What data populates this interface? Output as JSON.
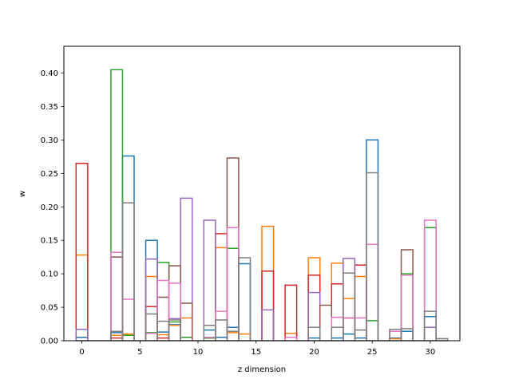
{
  "chart_data": {
    "type": "bar",
    "style": "step-outline histogram (overlapping unfilled bars)",
    "xlabel": "z dimension",
    "ylabel": "w",
    "xlim": [
      -1.55,
      32.55
    ],
    "ylim": [
      0,
      0.44
    ],
    "xticks": [
      0,
      5,
      10,
      15,
      20,
      25,
      30
    ],
    "yticks": [
      0.0,
      0.05,
      0.1,
      0.15,
      0.2,
      0.25,
      0.3,
      0.35,
      0.4
    ],
    "series": [
      {
        "color": "#1f77b4",
        "values": [
          0.005,
          0,
          0,
          0.012,
          0.276,
          0,
          0.15,
          0.013,
          0.024,
          0,
          0,
          0.016,
          0.005,
          0.02,
          0.115,
          0,
          0,
          0,
          0,
          0,
          0.004,
          0,
          0.004,
          0.01,
          0.004,
          0.3,
          0,
          0.004,
          0.014,
          0,
          0.036,
          0
        ]
      },
      {
        "color": "#ff7f0e",
        "values": [
          0.128,
          0,
          0,
          0.008,
          0.01,
          0,
          0.096,
          0.009,
          0.023,
          0.034,
          0,
          0.004,
          0.139,
          0.012,
          0.01,
          0,
          0.171,
          0,
          0.011,
          0,
          0.124,
          0,
          0.116,
          0.063,
          0.096,
          0,
          0,
          0.003,
          0,
          0,
          0,
          0
        ]
      },
      {
        "color": "#2ca02c",
        "values": [
          0,
          0,
          0,
          0.405,
          0.008,
          0,
          0.012,
          0.117,
          0.028,
          0.005,
          0,
          0.004,
          0,
          0.138,
          0,
          0,
          0,
          0,
          0,
          0,
          0,
          0,
          0,
          0,
          0,
          0.03,
          0,
          0,
          0.1,
          0,
          0.169,
          0
        ]
      },
      {
        "color": "#d62728",
        "values": [
          0.265,
          0,
          0,
          0.004,
          0,
          0,
          0.051,
          0.004,
          0,
          0,
          0,
          0,
          0.16,
          0,
          0,
          0,
          0.104,
          0,
          0.083,
          0,
          0.098,
          0,
          0.085,
          0.034,
          0.113,
          0,
          0,
          0,
          0,
          0,
          0,
          0
        ]
      },
      {
        "color": "#9467bd",
        "values": [
          0.017,
          0,
          0,
          0,
          0,
          0,
          0.122,
          0,
          0.033,
          0.213,
          0,
          0.18,
          0,
          0,
          0,
          0,
          0.046,
          0,
          0,
          0,
          0.072,
          0,
          0,
          0.123,
          0,
          0,
          0,
          0,
          0,
          0,
          0.02,
          0
        ]
      },
      {
        "color": "#8c564b",
        "values": [
          0,
          0,
          0,
          0.125,
          0,
          0,
          0,
          0.065,
          0.112,
          0.056,
          0,
          0,
          0,
          0.273,
          0,
          0,
          0,
          0,
          0,
          0,
          0,
          0.053,
          0,
          0,
          0,
          0,
          0,
          0,
          0.136,
          0,
          0,
          0
        ]
      },
      {
        "color": "#e377c2",
        "values": [
          0,
          0,
          0,
          0.132,
          0.062,
          0,
          0.011,
          0.09,
          0.086,
          0,
          0,
          0.005,
          0.044,
          0.169,
          0,
          0,
          0,
          0,
          0.005,
          0,
          0,
          0,
          0.035,
          0.034,
          0.034,
          0.144,
          0,
          0.014,
          0.098,
          0,
          0.18,
          0.003
        ]
      },
      {
        "color": "#7f7f7f",
        "values": [
          0,
          0,
          0,
          0.014,
          0.206,
          0,
          0.04,
          0.029,
          0.031,
          0,
          0,
          0.023,
          0.031,
          0.014,
          0.124,
          0,
          0,
          0,
          0,
          0,
          0.02,
          0,
          0.02,
          0.101,
          0.016,
          0.251,
          0,
          0.017,
          0.018,
          0,
          0.044,
          0.003
        ]
      }
    ]
  }
}
